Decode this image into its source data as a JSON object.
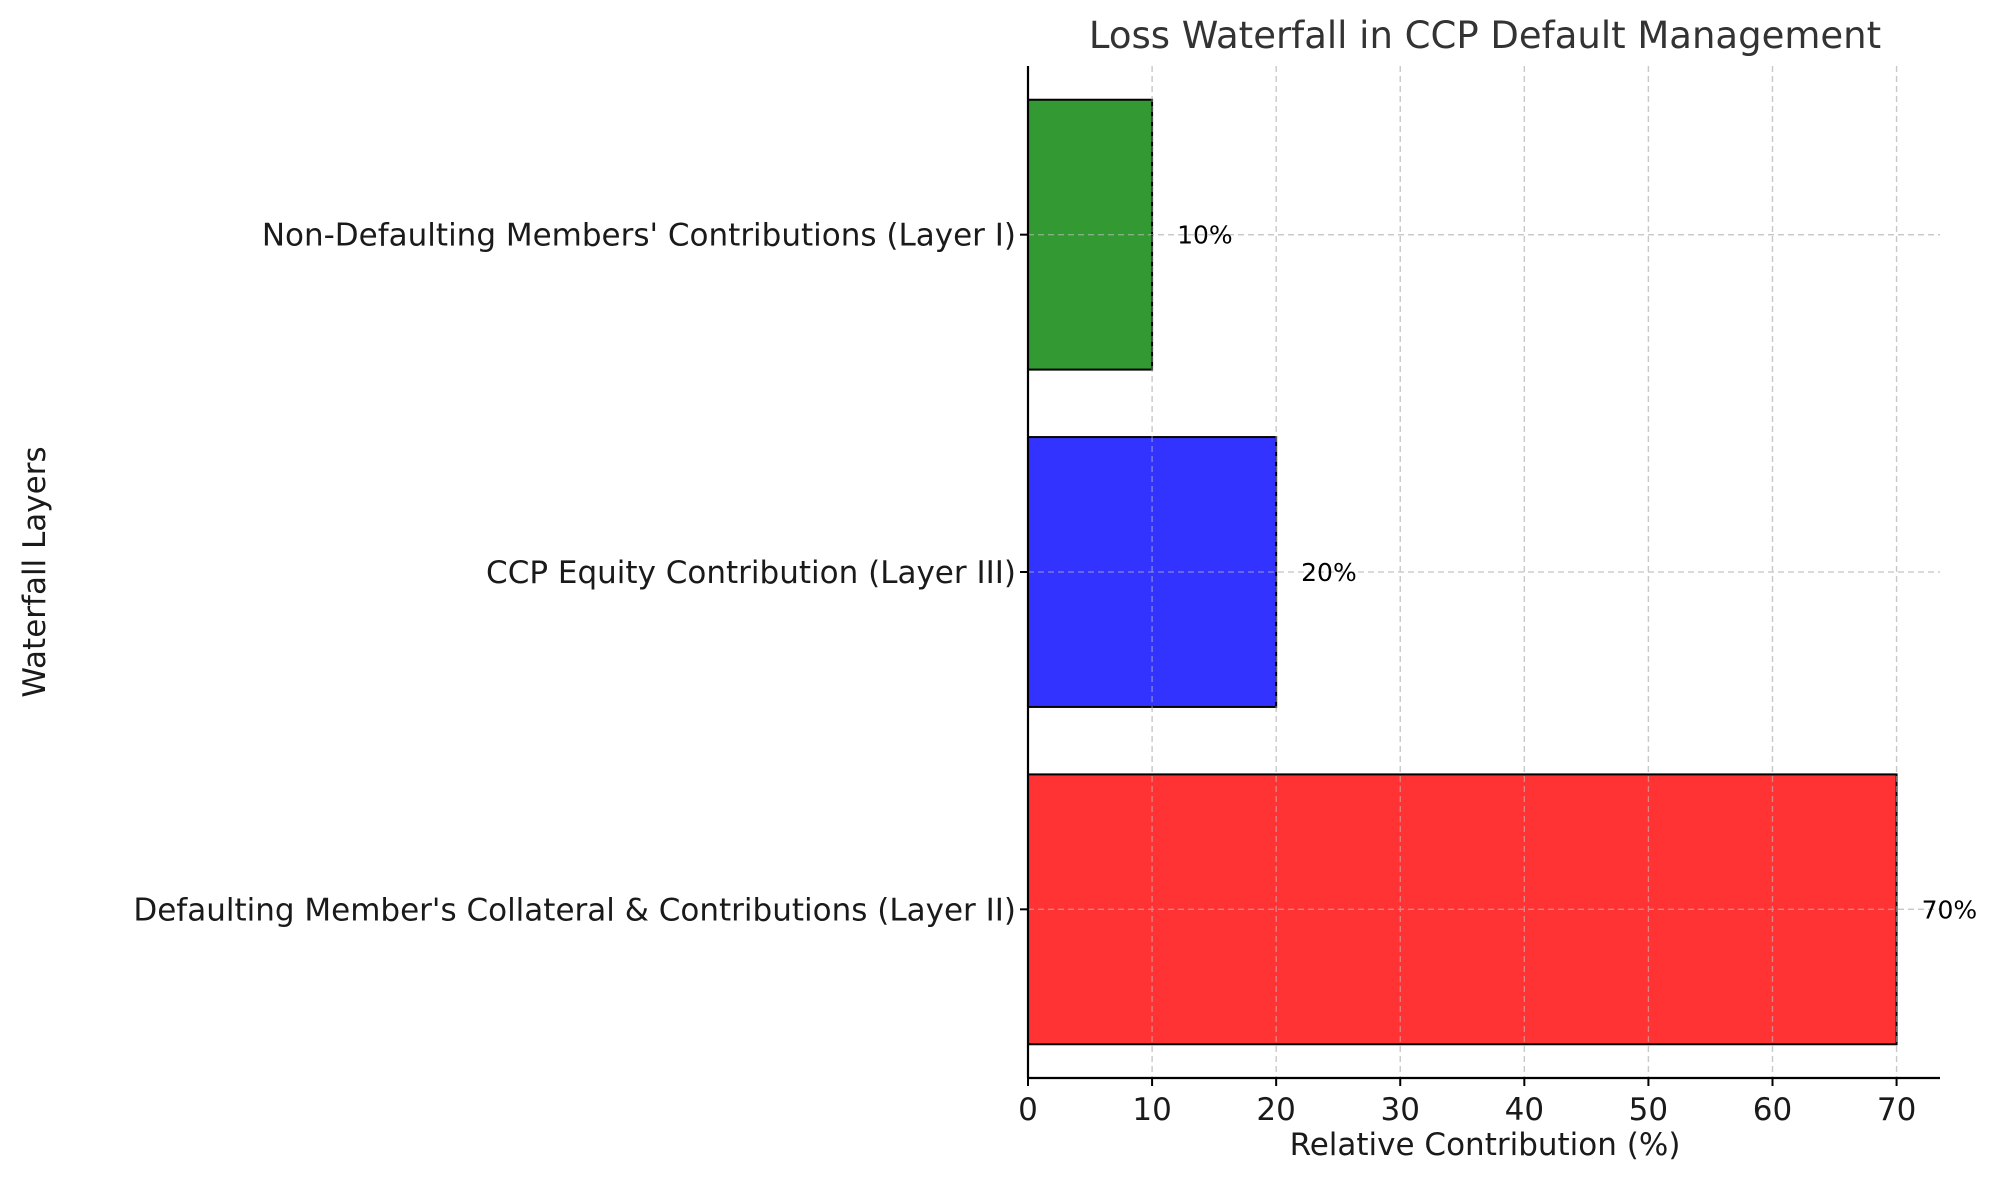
{
  "chart_data": {
    "type": "bar",
    "orientation": "horizontal",
    "title": "Loss Waterfall in CCP Default Management",
    "xlabel": "Relative Contribution (%)",
    "ylabel": "Waterfall Layers",
    "xlim": [
      0,
      73.5
    ],
    "xticks": [
      0,
      10,
      20,
      30,
      40,
      50,
      60,
      70
    ],
    "xtick_labels": [
      "0",
      "10",
      "20",
      "30",
      "40",
      "50",
      "60",
      "70"
    ],
    "grid": true,
    "categories": [
      "Defaulting Member's Collateral & Contributions (Layer II)",
      "CCP Equity Contribution (Layer III)",
      "Non-Defaulting Members' Contributions (Layer I)"
    ],
    "values": [
      70,
      20,
      10
    ],
    "data_labels": [
      "70%",
      "20%",
      "10%"
    ],
    "colors": [
      "#ff3333",
      "#3333ff",
      "#339933"
    ]
  }
}
